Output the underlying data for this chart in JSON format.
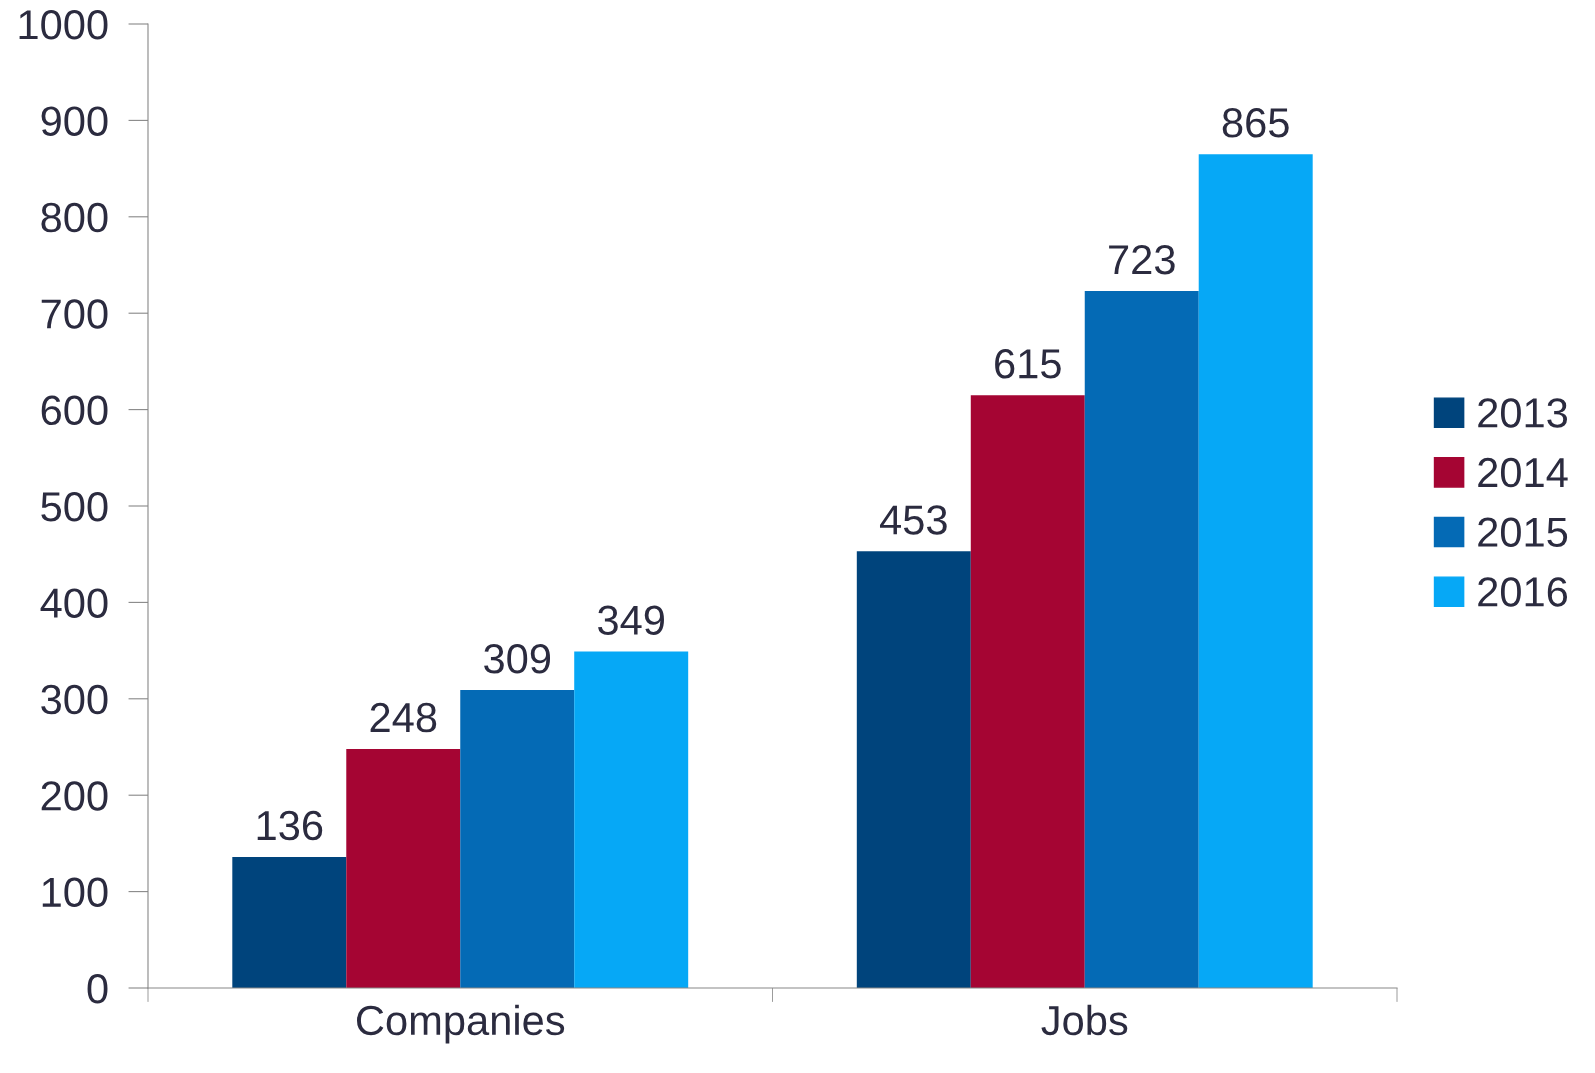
{
  "chart_data": {
    "type": "bar",
    "categories": [
      "Companies",
      "Jobs"
    ],
    "series": [
      {
        "name": "2013",
        "color": "#00447c",
        "values": [
          136,
          453
        ]
      },
      {
        "name": "2014",
        "color": "#a50533",
        "values": [
          248,
          615
        ]
      },
      {
        "name": "2015",
        "color": "#046ab5",
        "values": [
          309,
          723
        ]
      },
      {
        "name": "2016",
        "color": "#06a8f6",
        "values": [
          349,
          865
        ]
      }
    ],
    "ylim": [
      0,
      1000
    ],
    "yticks": [
      0,
      100,
      200,
      300,
      400,
      500,
      600,
      700,
      800,
      900,
      1000
    ],
    "data_labels": true,
    "legend": "right",
    "grid": false
  }
}
